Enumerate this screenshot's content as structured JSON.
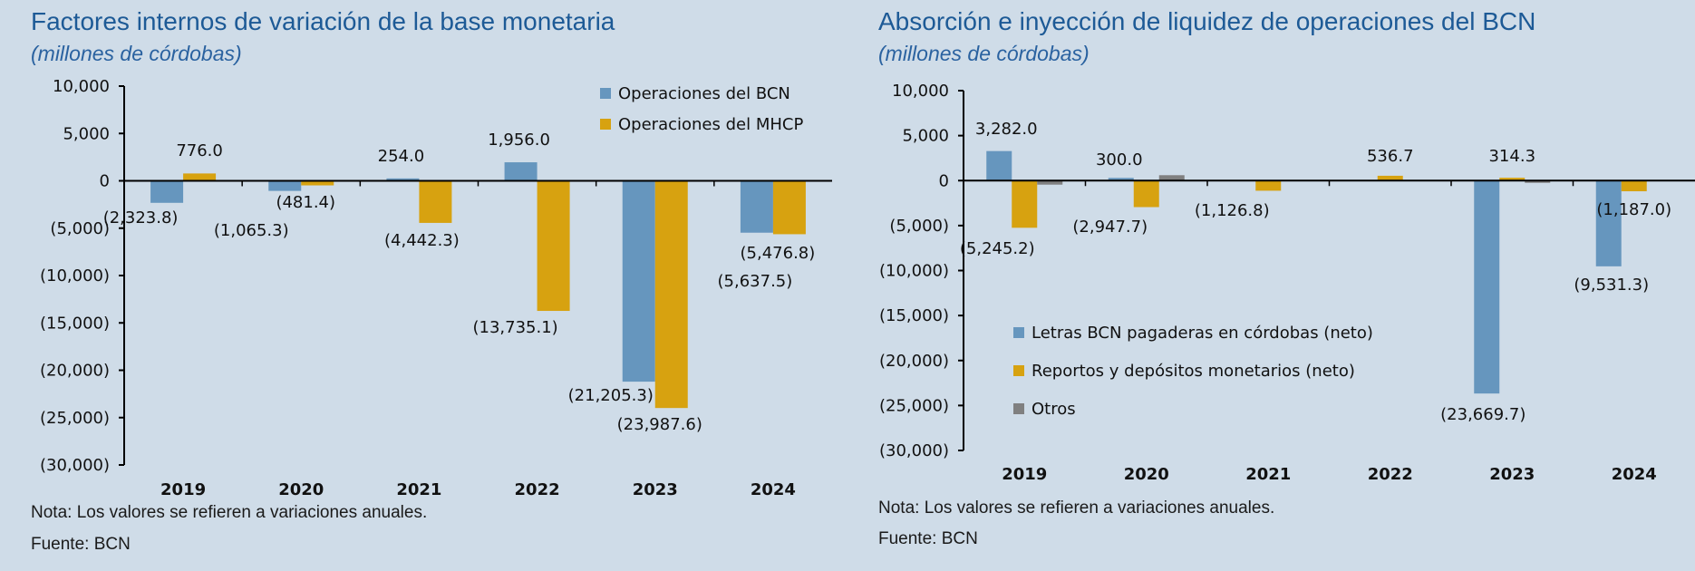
{
  "left": {
    "title": "Factores internos de variación de la base monetaria",
    "subtitle": "(millones de córdobas)",
    "note": "Nota: Los valores se refieren a variaciones anuales.",
    "source": "Fuente: BCN"
  },
  "right": {
    "title": "Absorción e inyección de liquidez de operaciones del BCN",
    "subtitle": "(millones de córdobas)",
    "note": "Nota: Los valores se refieren a variaciones anuales.",
    "source": "Fuente: BCN"
  },
  "colors": {
    "blue": "#6696be",
    "gold": "#d7a210",
    "gray": "#808080"
  },
  "chart_data": [
    {
      "type": "bar",
      "title": "Factores internos de variación de la base monetaria",
      "subtitle": "(millones de córdobas)",
      "categories": [
        "2019",
        "2020",
        "2021",
        "2022",
        "2023",
        "2024"
      ],
      "ylim": [
        -30000,
        10000
      ],
      "yticks": [
        10000,
        5000,
        0,
        -5000,
        -10000,
        -15000,
        -20000,
        -25000,
        -30000
      ],
      "ytick_labels": [
        "10,000",
        "5,000",
        "0",
        "(5,000)",
        "(10,000)",
        "(15,000)",
        "(20,000)",
        "(25,000)",
        "(30,000)"
      ],
      "grid": false,
      "legend": "top-right",
      "series": [
        {
          "name": "Operaciones del BCN",
          "color": "#6696be",
          "values": [
            -2323.8,
            -1065.3,
            254.0,
            1956.0,
            -21205.3,
            -5476.8
          ],
          "labels": [
            "(2,323.8)",
            "(1,065.3)",
            "254.0",
            "1,956.0",
            "(21,205.3)",
            "(5,476.8)"
          ]
        },
        {
          "name": "Operaciones del MHCP",
          "color": "#d7a210",
          "values": [
            776.0,
            -481.4,
            -4442.3,
            -13735.1,
            -23987.6,
            -5637.5
          ],
          "labels": [
            "776.0",
            "(481.4)",
            "(4,442.3)",
            "(13,735.1)",
            "(23,987.6)",
            "(5,637.5)"
          ]
        }
      ]
    },
    {
      "type": "bar",
      "title": "Absorción e inyección de liquidez de operaciones del BCN",
      "subtitle": "(millones de córdobas)",
      "categories": [
        "2019",
        "2020",
        "2021",
        "2022",
        "2023",
        "2024"
      ],
      "ylim": [
        -30000,
        10000
      ],
      "yticks": [
        10000,
        5000,
        0,
        -5000,
        -10000,
        -15000,
        -20000,
        -25000,
        -30000
      ],
      "ytick_labels": [
        "10,000",
        "5,000",
        "0",
        "(5,000)",
        "(10,000)",
        "(15,000)",
        "(20,000)",
        "(25,000)",
        "(30,000)"
      ],
      "grid": false,
      "legend": "bottom-left",
      "series": [
        {
          "name": "Letras BCN pagaderas en córdobas (neto)",
          "color": "#6696be",
          "values": [
            3282.0,
            300.0,
            0,
            0,
            -23669.7,
            -9531.3
          ],
          "labels": [
            "3,282.0",
            "300.0",
            "",
            "",
            "(23,669.7)",
            "(9,531.3)"
          ]
        },
        {
          "name": "Reportos y depósitos monetarios (neto)",
          "color": "#d7a210",
          "values": [
            -5245.2,
            -2947.7,
            -1126.8,
            536.7,
            314.3,
            -1187.0
          ],
          "labels": [
            "(5,245.2)",
            "(2,947.7)",
            "(1,126.8)",
            "536.7",
            "314.3",
            "(1,187.0)"
          ]
        },
        {
          "name": "Otros",
          "color": "#808080",
          "values": [
            -450,
            600,
            0,
            0,
            -250,
            0
          ],
          "labels": [
            "",
            "",
            "",
            "",
            "",
            ""
          ]
        }
      ]
    }
  ]
}
